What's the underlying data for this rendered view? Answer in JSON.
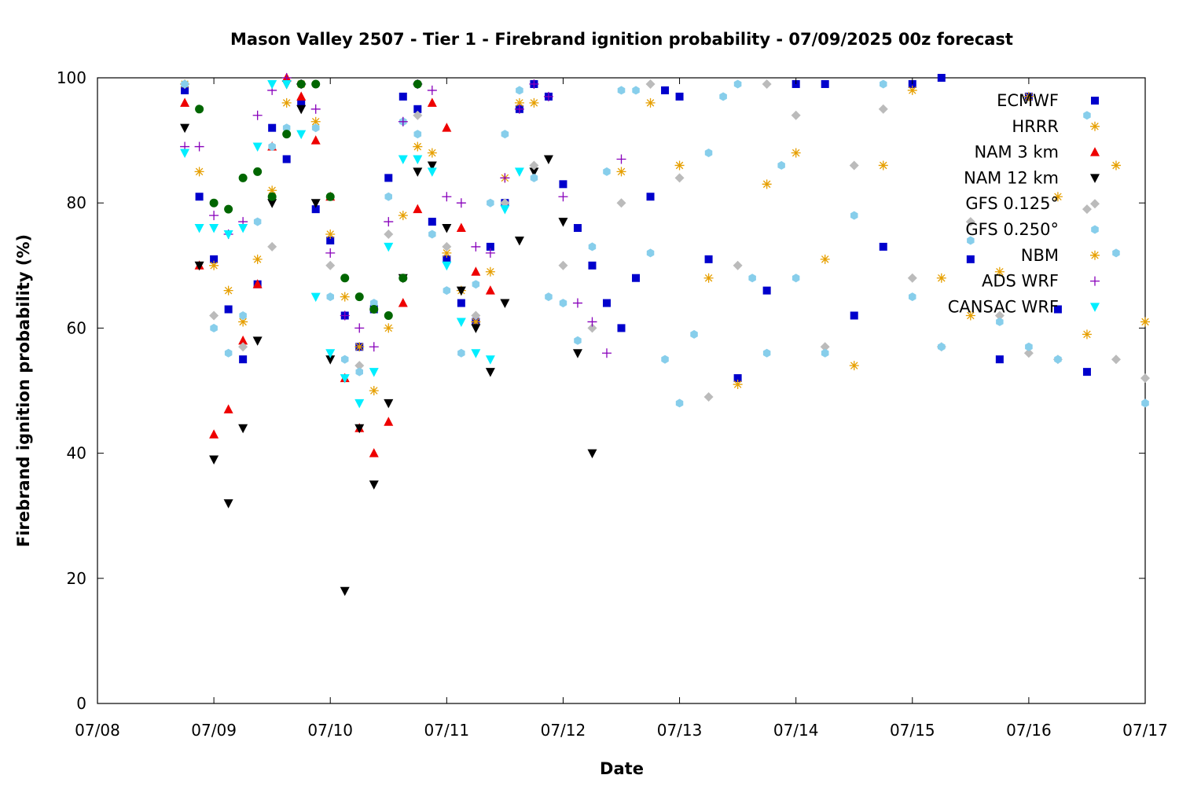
{
  "chart_data": {
    "type": "scatter",
    "title": "Mason Valley 2507 - Tier 1 - Firebrand ignition probability - 07/09/2025 00z forecast",
    "xlabel": "Date",
    "ylabel": "Firebrand ignition probability (%)",
    "xlim": [
      "07/08",
      "07/17"
    ],
    "ylim": [
      0,
      100
    ],
    "x_ticks": [
      "07/08",
      "07/09",
      "07/10",
      "07/11",
      "07/12",
      "07/13",
      "07/14",
      "07/15",
      "07/16",
      "07/17"
    ],
    "y_ticks": [
      0,
      20,
      40,
      60,
      80,
      100
    ],
    "grid": false,
    "legend_position": "top-right",
    "series": [
      {
        "name": "ECMWF",
        "marker": "square",
        "color": "#0000cc",
        "x": [
          "07/08 18:00",
          "07/08 21:00",
          "07/09 00:00",
          "07/09 03:00",
          "07/09 06:00",
          "07/09 09:00",
          "07/09 12:00",
          "07/09 15:00",
          "07/09 18:00",
          "07/09 21:00",
          "07/10 00:00",
          "07/10 03:00",
          "07/10 06:00",
          "07/10 09:00",
          "07/10 12:00",
          "07/10 15:00",
          "07/10 18:00",
          "07/10 21:00",
          "07/11 00:00",
          "07/11 03:00",
          "07/11 06:00",
          "07/11 09:00",
          "07/11 12:00",
          "07/11 15:00",
          "07/11 18:00",
          "07/11 21:00",
          "07/12 00:00",
          "07/12 03:00",
          "07/12 06:00",
          "07/12 09:00",
          "07/12 12:00",
          "07/12 15:00",
          "07/12 18:00",
          "07/12 21:00",
          "07/13 00:00",
          "07/13 06:00",
          "07/13 12:00",
          "07/13 18:00",
          "07/14 00:00",
          "07/14 06:00",
          "07/14 12:00",
          "07/14 18:00",
          "07/15 00:00",
          "07/15 06:00",
          "07/15 12:00",
          "07/15 18:00",
          "07/16 00:00",
          "07/16 06:00",
          "07/16 12:00"
        ],
        "y": [
          98,
          81,
          71,
          63,
          55,
          67,
          92,
          87,
          96,
          79,
          74,
          62,
          57,
          63,
          84,
          97,
          95,
          77,
          71,
          64,
          61,
          73,
          80,
          95,
          99,
          97,
          83,
          76,
          70,
          64,
          60,
          68,
          81,
          98,
          97,
          71,
          52,
          66,
          99,
          99,
          62,
          73,
          99,
          100,
          71,
          55,
          97,
          63,
          53
        ]
      },
      {
        "name": "HRRR",
        "marker": "asterisk",
        "color": "#e69f00",
        "x": [
          "07/08 18:00",
          "07/08 21:00",
          "07/09 00:00",
          "07/09 03:00",
          "07/09 06:00",
          "07/09 09:00",
          "07/09 12:00",
          "07/09 15:00",
          "07/09 18:00",
          "07/09 21:00",
          "07/10 00:00",
          "07/10 03:00",
          "07/10 06:00",
          "07/10 09:00",
          "07/10 12:00",
          "07/10 15:00",
          "07/10 18:00",
          "07/10 21:00",
          "07/11 00:00",
          "07/11 03:00",
          "07/11 06:00",
          "07/11 09:00",
          "07/11 12:00",
          "07/11 15:00",
          "07/11 18:00"
        ],
        "y": [
          99,
          85,
          70,
          66,
          61,
          71,
          82,
          96,
          99,
          93,
          75,
          65,
          57,
          50,
          60,
          78,
          89,
          88,
          72,
          66,
          61,
          69,
          84,
          96,
          96
        ]
      },
      {
        "name": "NAM 3 km",
        "marker": "triangle-up",
        "color": "#ee0000",
        "x": [
          "07/08 18:00",
          "07/08 21:00",
          "07/09 00:00",
          "07/09 03:00",
          "07/09 06:00",
          "07/09 09:00",
          "07/09 12:00",
          "07/09 15:00",
          "07/09 18:00",
          "07/09 21:00",
          "07/10 00:00",
          "07/10 03:00",
          "07/10 06:00",
          "07/10 09:00",
          "07/10 12:00",
          "07/10 15:00",
          "07/10 18:00",
          "07/10 21:00",
          "07/11 00:00",
          "07/11 03:00",
          "07/11 06:00",
          "07/11 09:00"
        ],
        "y": [
          96,
          70,
          43,
          47,
          58,
          67,
          89,
          100,
          97,
          90,
          81,
          52,
          44,
          40,
          45,
          64,
          79,
          96,
          92,
          76,
          69,
          66
        ]
      },
      {
        "name": "NAM 12 km",
        "marker": "triangle-down",
        "color": "#000000",
        "x": [
          "07/08 18:00",
          "07/08 21:00",
          "07/09 00:00",
          "07/09 03:00",
          "07/09 06:00",
          "07/09 09:00",
          "07/09 12:00",
          "07/09 15:00",
          "07/09 18:00",
          "07/09 21:00",
          "07/10 00:00",
          "07/10 03:00",
          "07/10 06:00",
          "07/10 09:00",
          "07/10 12:00",
          "07/10 15:00",
          "07/10 18:00",
          "07/10 21:00",
          "07/11 00:00",
          "07/11 03:00",
          "07/11 06:00",
          "07/11 09:00",
          "07/11 12:00",
          "07/11 15:00",
          "07/11 18:00",
          "07/11 21:00",
          "07/12 00:00",
          "07/12 03:00",
          "07/12 06:00"
        ],
        "y": [
          92,
          70,
          39,
          32,
          44,
          58,
          80,
          99,
          95,
          80,
          55,
          18,
          44,
          35,
          48,
          68,
          85,
          86,
          76,
          66,
          60,
          53,
          64,
          74,
          85,
          87,
          77,
          56,
          40
        ]
      },
      {
        "name": "GFS 0.125°",
        "marker": "diamond",
        "color": "#bbbbbb",
        "x": [
          "07/08 18:00",
          "07/09 00:00",
          "07/09 06:00",
          "07/09 12:00",
          "07/09 18:00",
          "07/10 00:00",
          "07/10 06:00",
          "07/10 12:00",
          "07/10 18:00",
          "07/11 00:00",
          "07/11 06:00",
          "07/11 12:00",
          "07/11 18:00",
          "07/12 00:00",
          "07/12 06:00",
          "07/12 12:00",
          "07/12 18:00",
          "07/13 00:00",
          "07/13 06:00",
          "07/13 12:00",
          "07/13 18:00",
          "07/14 00:00",
          "07/14 06:00",
          "07/14 12:00",
          "07/14 18:00",
          "07/15 00:00",
          "07/15 06:00",
          "07/15 12:00",
          "07/15 18:00",
          "07/16 00:00",
          "07/16 06:00",
          "07/16 12:00",
          "07/16 18:00",
          "07/17 00:00"
        ],
        "y": [
          99,
          62,
          57,
          73,
          99,
          70,
          54,
          75,
          94,
          73,
          62,
          80,
          86,
          70,
          60,
          80,
          99,
          84,
          49,
          70,
          99,
          94,
          57,
          86,
          95,
          68,
          57,
          77,
          62,
          56,
          55,
          79,
          55,
          52
        ]
      },
      {
        "name": "GFS 0.250°",
        "marker": "hexagon",
        "color": "#87ceeb",
        "x": [
          "07/08 18:00",
          "07/09 00:00",
          "07/09 03:00",
          "07/09 06:00",
          "07/09 09:00",
          "07/09 12:00",
          "07/09 15:00",
          "07/09 18:00",
          "07/09 21:00",
          "07/10 00:00",
          "07/10 03:00",
          "07/10 06:00",
          "07/10 09:00",
          "07/10 12:00",
          "07/10 15:00",
          "07/10 18:00",
          "07/10 21:00",
          "07/11 00:00",
          "07/11 03:00",
          "07/11 06:00",
          "07/11 09:00",
          "07/11 12:00",
          "07/11 15:00",
          "07/11 18:00",
          "07/11 21:00",
          "07/12 00:00",
          "07/12 03:00",
          "07/12 06:00",
          "07/12 09:00",
          "07/12 12:00",
          "07/12 15:00",
          "07/12 18:00",
          "07/12 21:00",
          "07/13 00:00",
          "07/13 03:00",
          "07/13 06:00",
          "07/13 09:00",
          "07/13 12:00",
          "07/13 15:00",
          "07/13 18:00",
          "07/13 21:00",
          "07/14 00:00",
          "07/14 06:00",
          "07/14 12:00",
          "07/14 18:00",
          "07/15 00:00",
          "07/15 06:00",
          "07/15 12:00",
          "07/15 18:00",
          "07/16 00:00",
          "07/16 06:00",
          "07/16 12:00",
          "07/16 18:00",
          "07/17 00:00"
        ],
        "y": [
          99,
          60,
          56,
          62,
          77,
          89,
          92,
          99,
          92,
          65,
          55,
          53,
          64,
          81,
          93,
          91,
          75,
          66,
          56,
          67,
          80,
          91,
          98,
          84,
          65,
          64,
          58,
          73,
          85,
          98,
          98,
          72,
          55,
          48,
          59,
          88,
          97,
          99,
          68,
          56,
          86,
          68,
          56,
          78,
          99,
          65,
          57,
          74,
          61,
          57,
          55,
          94,
          72,
          48
        ]
      },
      {
        "name": "NBM",
        "marker": "asterisk",
        "color": "#e69f00",
        "x": [
          "07/12 12:00",
          "07/12 18:00",
          "07/13 00:00",
          "07/13 06:00",
          "07/13 12:00",
          "07/13 18:00",
          "07/14 00:00",
          "07/14 06:00",
          "07/14 12:00",
          "07/14 18:00",
          "07/15 00:00",
          "07/15 06:00",
          "07/15 12:00",
          "07/15 18:00",
          "07/16 00:00",
          "07/16 06:00",
          "07/16 12:00",
          "07/16 18:00",
          "07/17 00:00"
        ],
        "y": [
          85,
          96,
          86,
          68,
          51,
          83,
          88,
          71,
          54,
          86,
          98,
          68,
          62,
          69,
          97,
          81,
          59,
          86,
          61
        ]
      },
      {
        "name": "ADS WRF",
        "marker": "plus",
        "color": "#8800bb",
        "x": [
          "07/08 18:00",
          "07/08 21:00",
          "07/09 00:00",
          "07/09 03:00",
          "07/09 06:00",
          "07/09 09:00",
          "07/09 12:00",
          "07/09 15:00",
          "07/09 18:00",
          "07/09 21:00",
          "07/10 00:00",
          "07/10 03:00",
          "07/10 06:00",
          "07/10 09:00",
          "07/10 12:00",
          "07/10 15:00",
          "07/10 18:00",
          "07/10 21:00",
          "07/11 00:00",
          "07/11 03:00",
          "07/11 06:00",
          "07/11 09:00",
          "07/11 12:00",
          "07/11 15:00",
          "07/11 18:00",
          "07/11 21:00",
          "07/12 00:00",
          "07/12 03:00",
          "07/12 06:00",
          "07/12 09:00",
          "07/12 12:00"
        ],
        "y": [
          89,
          89,
          78,
          75,
          77,
          94,
          98,
          100,
          99,
          95,
          72,
          62,
          60,
          57,
          77,
          93,
          99,
          98,
          81,
          80,
          73,
          72,
          84,
          95,
          99,
          97,
          81,
          64,
          61,
          56,
          87
        ]
      },
      {
        "name": "CANSAC WRF",
        "marker": "triangle-down",
        "color": "#00eeff",
        "x": [
          "07/08 18:00",
          "07/08 21:00",
          "07/09 00:00",
          "07/09 03:00",
          "07/09 06:00",
          "07/09 09:00",
          "07/09 12:00",
          "07/09 15:00",
          "07/09 18:00",
          "07/09 21:00",
          "07/10 00:00",
          "07/10 03:00",
          "07/10 06:00",
          "07/10 09:00",
          "07/10 12:00",
          "07/10 15:00",
          "07/10 18:00",
          "07/10 21:00",
          "07/11 00:00",
          "07/11 03:00",
          "07/11 06:00",
          "07/11 09:00",
          "07/11 12:00",
          "07/11 15:00"
        ],
        "y": [
          88,
          76,
          76,
          75,
          76,
          89,
          99,
          99,
          91,
          65,
          56,
          52,
          48,
          53,
          73,
          87,
          87,
          85,
          70,
          61,
          56,
          55,
          79,
          85
        ]
      },
      {
        "name": "",
        "marker": "circle",
        "color": "#006600",
        "x": [
          "07/08 21:00",
          "07/09 00:00",
          "07/09 03:00",
          "07/09 06:00",
          "07/09 09:00",
          "07/09 12:00",
          "07/09 15:00",
          "07/09 18:00",
          "07/09 21:00",
          "07/10 00:00",
          "07/10 03:00",
          "07/10 06:00",
          "07/10 09:00",
          "07/10 12:00",
          "07/10 15:00",
          "07/10 18:00"
        ],
        "y": [
          95,
          80,
          79,
          84,
          85,
          81,
          91,
          99,
          99,
          81,
          68,
          65,
          63,
          62,
          68,
          99
        ]
      }
    ]
  }
}
